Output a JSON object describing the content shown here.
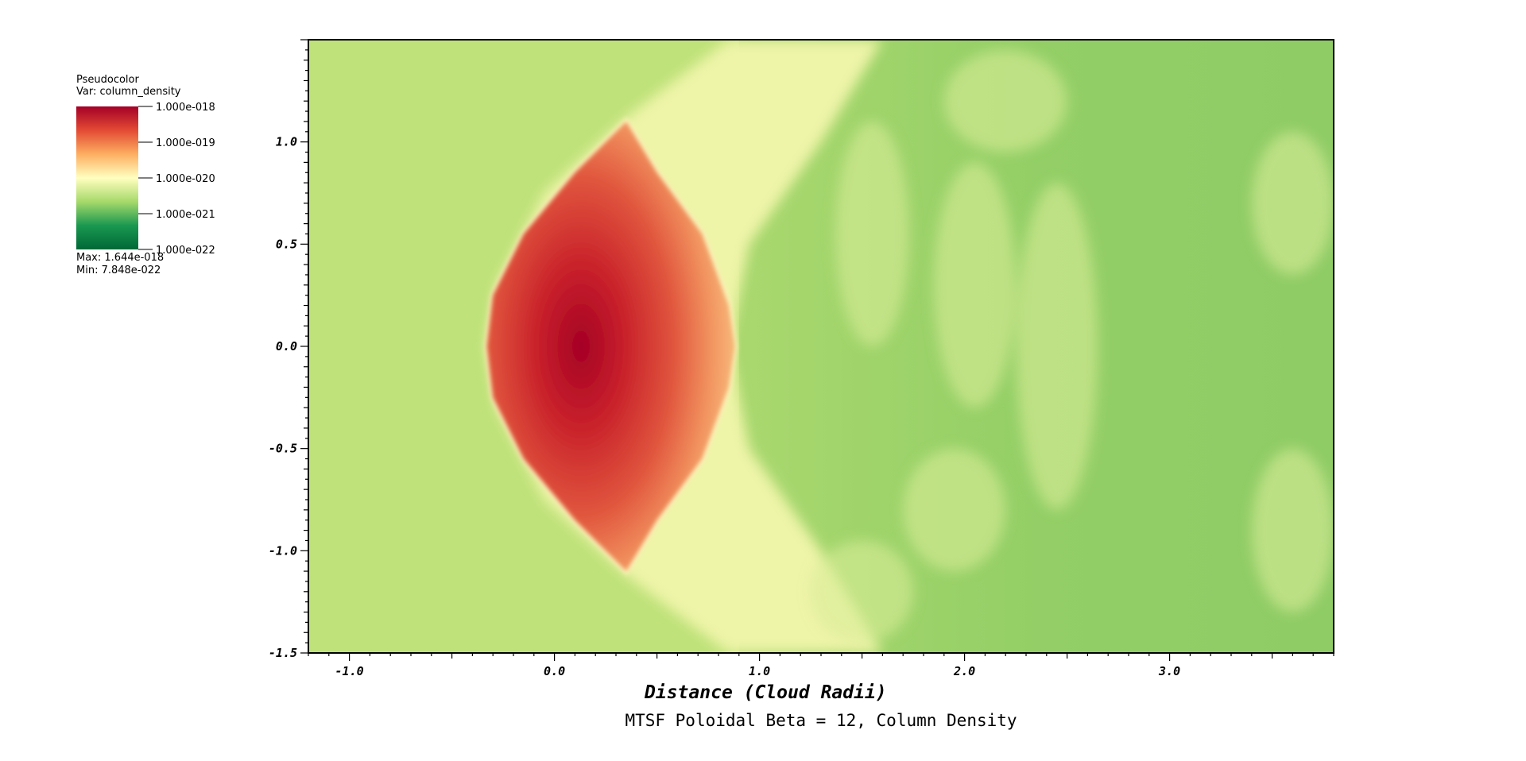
{
  "legend": {
    "plot_type": "Pseudocolor",
    "variable": "Var: column_density",
    "max_label": "Max:  1.644e-018",
    "min_label": "Min:  7.848e-022",
    "ticks": [
      "1.000e-018",
      "1.000e-019",
      "1.000e-020",
      "1.000e-021",
      "1.000e-022"
    ],
    "colormap": [
      "#a50026",
      "#e34a33",
      "#fdae61",
      "#ffffbf",
      "#a6d96a",
      "#1a9850",
      "#006837"
    ]
  },
  "chart_data": {
    "type": "heatmap",
    "title": "MTSF Poloidal Beta = 12, Column Density",
    "xlabel": "Distance (Cloud Radii)",
    "ylabel": "",
    "xlim": [
      -1.2,
      3.8
    ],
    "ylim": [
      -1.5,
      1.5
    ],
    "x_ticks": [
      -1.0,
      0.0,
      1.0,
      2.0,
      3.0
    ],
    "x_tick_labels": [
      "-1.0",
      "0.0",
      "1.0",
      "2.0",
      "3.0"
    ],
    "y_ticks": [
      -1.5,
      -1.0,
      -0.5,
      0.0,
      0.5,
      1.0
    ],
    "y_tick_labels": [
      "-1.5",
      "-1.0",
      "-0.5",
      "0.0",
      "0.5",
      "1.0"
    ],
    "colorbar_range": [
      "1.000e-022",
      "1.000e-018"
    ],
    "data_max": "1.644e-018",
    "data_min": "7.848e-022",
    "scale": "log"
  }
}
